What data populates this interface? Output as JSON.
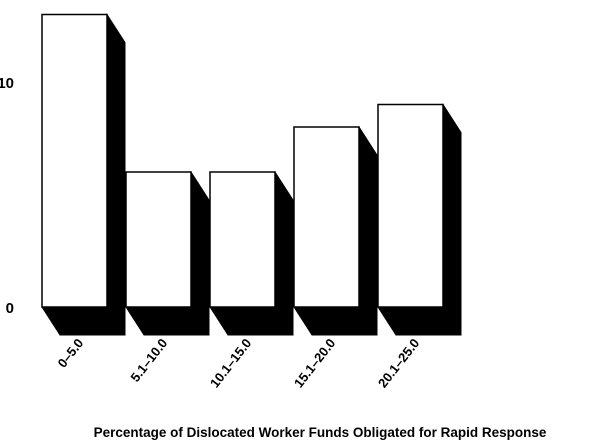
{
  "chart_data": {
    "type": "bar",
    "style": "3d",
    "categories": [
      "0–5.0",
      "5.1–10.0",
      "10.1–15.0",
      "15.1–20.0",
      "20.1–25.0"
    ],
    "series": [
      {
        "values": [
          13,
          6,
          6,
          8,
          9
        ]
      }
    ],
    "title": "",
    "xlabel": "Percentage of Dislocated Worker Funds Obligated for Rapid Response",
    "ylabel": "",
    "yticks": [
      0,
      10
    ],
    "ylim": [
      0,
      13
    ],
    "grid": false,
    "legend": "none",
    "colors": {
      "bar_face": "#ffffff",
      "bar_shadow": "#000000",
      "outline": "#000000",
      "text": "#000000"
    }
  }
}
